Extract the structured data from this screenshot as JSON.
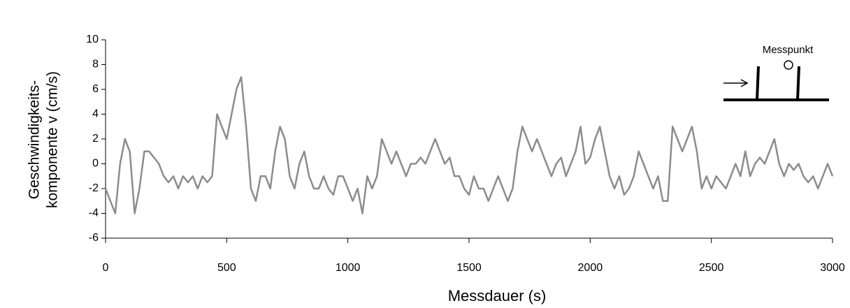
{
  "chart_data": {
    "type": "line",
    "xlabel": "Messdauer (s)",
    "ylabel": [
      "Geschwindigkeits-",
      "komponente  v (cm/s)"
    ],
    "annotation": "Messpunkt",
    "color": "#8c8c8c",
    "xlim": [
      0,
      3000
    ],
    "ylim": [
      -6,
      10
    ],
    "xticks": [
      0,
      500,
      1000,
      1500,
      2000,
      2500,
      3000
    ],
    "yticks": [
      -6,
      -4,
      -2,
      0,
      2,
      4,
      6,
      8,
      10
    ],
    "x": [
      0,
      20,
      40,
      60,
      80,
      100,
      120,
      140,
      160,
      180,
      200,
      220,
      240,
      260,
      280,
      300,
      320,
      340,
      360,
      380,
      400,
      420,
      440,
      460,
      480,
      500,
      520,
      540,
      560,
      580,
      600,
      620,
      640,
      660,
      680,
      700,
      720,
      740,
      760,
      780,
      800,
      820,
      840,
      860,
      880,
      900,
      920,
      940,
      960,
      980,
      1000,
      1020,
      1040,
      1060,
      1080,
      1100,
      1120,
      1140,
      1160,
      1180,
      1200,
      1220,
      1240,
      1260,
      1280,
      1300,
      1320,
      1340,
      1360,
      1380,
      1400,
      1420,
      1440,
      1460,
      1480,
      1500,
      1520,
      1540,
      1560,
      1580,
      1600,
      1620,
      1640,
      1660,
      1680,
      1700,
      1720,
      1740,
      1760,
      1780,
      1800,
      1820,
      1840,
      1860,
      1880,
      1900,
      1920,
      1940,
      1960,
      1980,
      2000,
      2020,
      2040,
      2060,
      2080,
      2100,
      2120,
      2140,
      2160,
      2180,
      2200,
      2220,
      2240,
      2260,
      2280,
      2300,
      2320,
      2340,
      2360,
      2380,
      2400,
      2420,
      2440,
      2460,
      2480,
      2500,
      2520,
      2540,
      2560,
      2580,
      2600,
      2620,
      2640,
      2660,
      2680,
      2700,
      2720,
      2740,
      2760,
      2780,
      2800,
      2820,
      2840,
      2860,
      2880,
      2900,
      2920,
      2940,
      2960,
      2980,
      3000
    ],
    "values": [
      -2,
      -3,
      -4,
      0,
      2,
      1,
      -4,
      -2,
      1,
      1,
      0.5,
      0,
      -1,
      -1.5,
      -1,
      -2,
      -1,
      -1.5,
      -1,
      -2,
      -1,
      -1.5,
      -1,
      4,
      3,
      2,
      4,
      6,
      7,
      3,
      -2,
      -3,
      -1,
      -1,
      -2,
      1,
      3,
      2,
      -1,
      -2,
      0,
      1,
      -1,
      -2,
      -2,
      -1,
      -2,
      -2.5,
      -1,
      -1,
      -2,
      -3,
      -2,
      -4,
      -1,
      -2,
      -1,
      2,
      1,
      0,
      1,
      0,
      -1,
      0,
      0,
      0.5,
      0,
      1,
      2,
      1,
      0,
      0.5,
      -1,
      -1,
      -2,
      -2.5,
      -1,
      -2,
      -2,
      -3,
      -2,
      -1,
      -2,
      -3,
      -2,
      1,
      3,
      2,
      1,
      2,
      1,
      0,
      -1,
      0,
      0.5,
      -1,
      0,
      1,
      3,
      0,
      0.5,
      2,
      3,
      1,
      -1,
      -2,
      -1,
      -2.5,
      -2,
      -1,
      1,
      0,
      -1,
      -2,
      -1,
      -3,
      -3,
      3,
      2,
      1,
      2,
      3,
      1,
      -2,
      -1,
      -2,
      -1,
      -1.5,
      -2,
      -1,
      0,
      -1,
      1,
      -1,
      0,
      0.5,
      0,
      1,
      2,
      0,
      -1,
      0,
      -0.5,
      0,
      -1,
      -1.5,
      -1,
      -2,
      -1,
      0,
      -1
    ]
  }
}
